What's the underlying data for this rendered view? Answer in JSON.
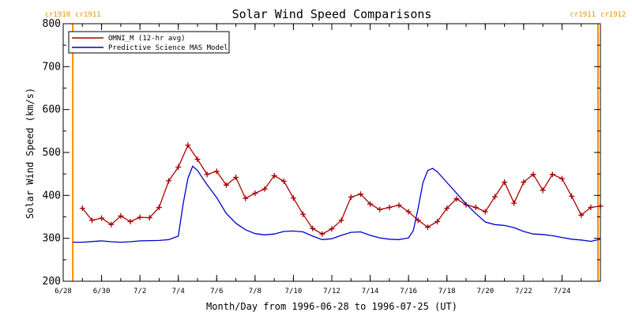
{
  "chart_data": {
    "type": "line",
    "title": "Solar Wind Speed Comparisons",
    "xlabel": "Month/Day from 1996-06-28 to 1996-07-25 (UT)",
    "ylabel": "Solar Wind Speed (km/s)",
    "xlim": [
      "1996-06-28",
      "1996-07-26"
    ],
    "ylim": [
      200,
      800
    ],
    "x_ticks": [
      {
        "date": "1996-06-28",
        "label": "6/28"
      },
      {
        "date": "1996-06-30",
        "label": "6/30"
      },
      {
        "date": "1996-07-02",
        "label": "7/2"
      },
      {
        "date": "1996-07-04",
        "label": "7/4"
      },
      {
        "date": "1996-07-06",
        "label": "7/6"
      },
      {
        "date": "1996-07-08",
        "label": "7/8"
      },
      {
        "date": "1996-07-10",
        "label": "7/10"
      },
      {
        "date": "1996-07-12",
        "label": "7/12"
      },
      {
        "date": "1996-07-14",
        "label": "7/14"
      },
      {
        "date": "1996-07-16",
        "label": "7/16"
      },
      {
        "date": "1996-07-18",
        "label": "7/18"
      },
      {
        "date": "1996-07-20",
        "label": "7/20"
      },
      {
        "date": "1996-07-22",
        "label": "7/22"
      },
      {
        "date": "1996-07-24",
        "label": "7/24"
      }
    ],
    "y_ticks": [
      200,
      300,
      400,
      500,
      600,
      700,
      800
    ],
    "legend_position": "top-left",
    "markers": [
      {
        "date": "1996-06-28 12:00",
        "label_left": "cr1910",
        "label_right": "cr1911"
      },
      {
        "date": "1996-07-25 21:00",
        "label_left": "cr1911",
        "label_right": "cr1912"
      }
    ],
    "series": [
      {
        "name": "OMNI_M (12-hr avg)",
        "color": "#aa0000",
        "marker": "plus",
        "points": [
          [
            "1996-06-29 00:00",
            370
          ],
          [
            "1996-06-29 12:00",
            342
          ],
          [
            "1996-06-30 00:00",
            347
          ],
          [
            "1996-06-30 12:00",
            332
          ],
          [
            "1996-07-01 00:00",
            352
          ],
          [
            "1996-07-01 12:00",
            339
          ],
          [
            "1996-07-02 00:00",
            349
          ],
          [
            "1996-07-02 12:00",
            348
          ],
          [
            "1996-07-03 00:00",
            372
          ],
          [
            "1996-07-03 12:00",
            434
          ],
          [
            "1996-07-04 00:00",
            466
          ],
          [
            "1996-07-04 12:00",
            517
          ],
          [
            "1996-07-05 00:00",
            484
          ],
          [
            "1996-07-05 12:00",
            449
          ],
          [
            "1996-07-06 00:00",
            456
          ],
          [
            "1996-07-06 12:00",
            424
          ],
          [
            "1996-07-07 00:00",
            442
          ],
          [
            "1996-07-07 12:00",
            393
          ],
          [
            "1996-07-08 00:00",
            405
          ],
          [
            "1996-07-08 12:00",
            415
          ],
          [
            "1996-07-09 00:00",
            446
          ],
          [
            "1996-07-09 12:00",
            433
          ],
          [
            "1996-07-10 00:00",
            394
          ],
          [
            "1996-07-10 12:00",
            356
          ],
          [
            "1996-07-11 00:00",
            323
          ],
          [
            "1996-07-11 12:00",
            310
          ],
          [
            "1996-07-12 00:00",
            322
          ],
          [
            "1996-07-12 12:00",
            342
          ],
          [
            "1996-07-13 00:00",
            396
          ],
          [
            "1996-07-13 12:00",
            403
          ],
          [
            "1996-07-14 00:00",
            380
          ],
          [
            "1996-07-14 12:00",
            367
          ],
          [
            "1996-07-15 00:00",
            372
          ],
          [
            "1996-07-15 12:00",
            377
          ],
          [
            "1996-07-16 00:00",
            362
          ],
          [
            "1996-07-16 12:00",
            342
          ],
          [
            "1996-07-17 00:00",
            326
          ],
          [
            "1996-07-17 12:00",
            339
          ],
          [
            "1996-07-18 00:00",
            370
          ],
          [
            "1996-07-18 12:00",
            392
          ],
          [
            "1996-07-19 00:00",
            378
          ],
          [
            "1996-07-19 12:00",
            372
          ],
          [
            "1996-07-20 00:00",
            362
          ],
          [
            "1996-07-20 12:00",
            397
          ],
          [
            "1996-07-21 00:00",
            431
          ],
          [
            "1996-07-21 12:00",
            382
          ],
          [
            "1996-07-22 00:00",
            431
          ],
          [
            "1996-07-22 12:00",
            449
          ],
          [
            "1996-07-23 00:00",
            412
          ],
          [
            "1996-07-23 12:00",
            449
          ],
          [
            "1996-07-24 00:00",
            439
          ],
          [
            "1996-07-24 12:00",
            398
          ],
          [
            "1996-07-25 00:00",
            354
          ],
          [
            "1996-07-25 12:00",
            372
          ],
          [
            "1996-07-26 00:00",
            375
          ]
        ]
      },
      {
        "name": "Predictive Science MAS Model",
        "color": "#0000cc",
        "marker": "none",
        "points": [
          [
            "1996-06-28 12:00",
            291
          ],
          [
            "1996-06-29 00:00",
            291
          ],
          [
            "1996-06-30 00:00",
            294
          ],
          [
            "1996-06-30 12:00",
            292
          ],
          [
            "1996-07-01 00:00",
            291
          ],
          [
            "1996-07-01 12:00",
            292
          ],
          [
            "1996-07-02 00:00",
            294
          ],
          [
            "1996-07-03 00:00",
            295
          ],
          [
            "1996-07-03 12:00",
            297
          ],
          [
            "1996-07-04 00:00",
            305
          ],
          [
            "1996-07-04 06:00",
            380
          ],
          [
            "1996-07-04 12:00",
            440
          ],
          [
            "1996-07-04 18:00",
            468
          ],
          [
            "1996-07-05 00:00",
            458
          ],
          [
            "1996-07-05 12:00",
            425
          ],
          [
            "1996-07-06 00:00",
            395
          ],
          [
            "1996-07-06 12:00",
            358
          ],
          [
            "1996-07-07 00:00",
            335
          ],
          [
            "1996-07-07 12:00",
            320
          ],
          [
            "1996-07-08 00:00",
            311
          ],
          [
            "1996-07-08 12:00",
            308
          ],
          [
            "1996-07-09 00:00",
            310
          ],
          [
            "1996-07-09 12:00",
            316
          ],
          [
            "1996-07-10 00:00",
            317
          ],
          [
            "1996-07-10 12:00",
            315
          ],
          [
            "1996-07-11 00:00",
            305
          ],
          [
            "1996-07-11 12:00",
            297
          ],
          [
            "1996-07-12 00:00",
            299
          ],
          [
            "1996-07-12 12:00",
            307
          ],
          [
            "1996-07-13 00:00",
            314
          ],
          [
            "1996-07-13 12:00",
            315
          ],
          [
            "1996-07-14 00:00",
            307
          ],
          [
            "1996-07-14 12:00",
            301
          ],
          [
            "1996-07-15 00:00",
            298
          ],
          [
            "1996-07-15 12:00",
            297
          ],
          [
            "1996-07-16 00:00",
            301
          ],
          [
            "1996-07-16 06:00",
            318
          ],
          [
            "1996-07-16 12:00",
            370
          ],
          [
            "1996-07-16 18:00",
            430
          ],
          [
            "1996-07-17 00:00",
            458
          ],
          [
            "1996-07-17 06:00",
            463
          ],
          [
            "1996-07-17 12:00",
            455
          ],
          [
            "1996-07-18 00:00",
            430
          ],
          [
            "1996-07-18 12:00",
            405
          ],
          [
            "1996-07-19 00:00",
            380
          ],
          [
            "1996-07-19 12:00",
            358
          ],
          [
            "1996-07-20 00:00",
            338
          ],
          [
            "1996-07-20 12:00",
            332
          ],
          [
            "1996-07-21 00:00",
            330
          ],
          [
            "1996-07-21 12:00",
            325
          ],
          [
            "1996-07-22 00:00",
            316
          ],
          [
            "1996-07-22 12:00",
            310
          ],
          [
            "1996-07-23 00:00",
            309
          ],
          [
            "1996-07-23 12:00",
            306
          ],
          [
            "1996-07-24 00:00",
            302
          ],
          [
            "1996-07-24 12:00",
            298
          ],
          [
            "1996-07-25 00:00",
            296
          ],
          [
            "1996-07-25 12:00",
            293
          ],
          [
            "1996-07-26 00:00",
            298
          ]
        ]
      }
    ]
  }
}
